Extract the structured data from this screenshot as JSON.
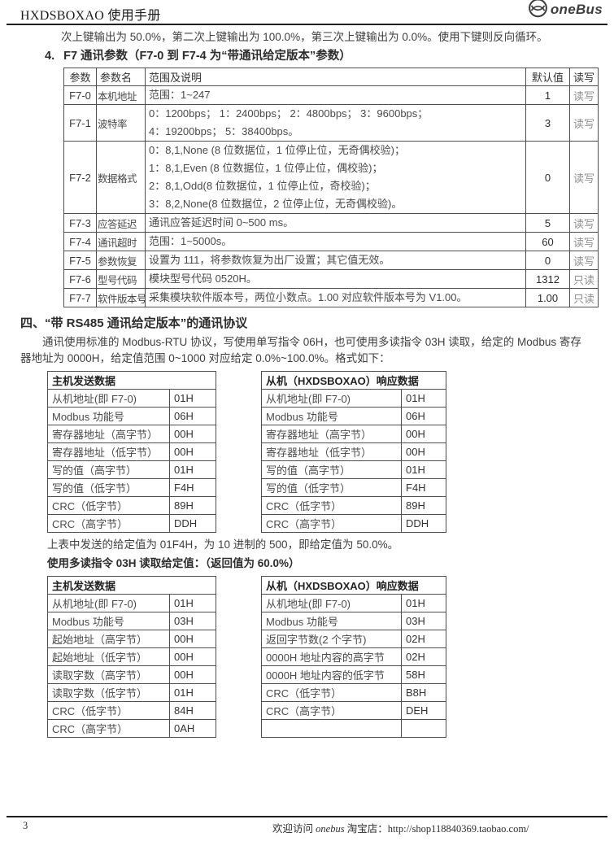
{
  "colors": {
    "rule": "#1f1f1f",
    "border": "#4f4f4f",
    "text": "#3f3f3f",
    "muted": "#8f8f8f",
    "logo": "#3d3d3d"
  },
  "header": {
    "title": "HXDSBOXAO 使用手册",
    "logo_text": "oneBus"
  },
  "intro_line": "次上键输出为 50.0%，第二次上键输出为 100.0%，第三次上键输出为 0.0%。使用下键则反向循环。",
  "section4": {
    "number": "4.",
    "heading": "F7 通讯参数（F7-0 到 F7-4 为“带通讯给定版本”参数）",
    "table": {
      "headers": [
        "参数",
        "参数名",
        "范围及说明",
        "默认值",
        "读写"
      ],
      "rows": [
        {
          "param": "F7-0",
          "name": "本机地址",
          "desc": [
            "范围：1~247"
          ],
          "default": "1",
          "rw": "读写"
        },
        {
          "param": "F7-1",
          "name": "波特率",
          "desc": [
            "0：1200bps； 1：2400bps； 2：4800bps； 3：9600bps；",
            "4：19200bps； 5：38400bps。"
          ],
          "default": "3",
          "rw": "读写"
        },
        {
          "param": "F7-2",
          "name": "数据格式",
          "desc": [
            "0：8,1,None (8 位数据位，1 位停止位，无奇偶校验)；",
            "1：8,1,Even (8 位数据位，1 位停止位，偶校验)；",
            "2：8,1,Odd(8 位数据位，1 位停止位，奇校验)；",
            "3：8,2,None(8 位数据位，2 位停止位，无奇偶校验)。"
          ],
          "default": "0",
          "rw": "读写"
        },
        {
          "param": "F7-3",
          "name": "应答延迟",
          "desc": [
            "通讯应答延迟时间 0~500 ms。"
          ],
          "default": "5",
          "rw": "读写"
        },
        {
          "param": "F7-4",
          "name": "通讯超时",
          "desc": [
            "范围：1~5000s。"
          ],
          "default": "60",
          "rw": "读写"
        },
        {
          "param": "F7-5",
          "name": "参数恢复",
          "desc": [
            "设置为 111，将参数恢复为出厂设置；其它值无效。"
          ],
          "default": "0",
          "rw": "读写"
        },
        {
          "param": "F7-6",
          "name": "型号代码",
          "desc": [
            "模块型号代码 0520H。"
          ],
          "default": "1312",
          "rw": "只读"
        },
        {
          "param": "F7-7",
          "name": "软件版本号",
          "desc": [
            "采集模块软件版本号，两位小数点。1.00 对应软件版本号为 V1.00。"
          ],
          "default": "1.00",
          "rw": "只读"
        }
      ]
    }
  },
  "protocol": {
    "heading": "四、“带 RS485 通讯给定版本”的通讯协议",
    "para_line1": "通讯使用标准的 Modbus-RTU 协议，写使用单写指令 06H，也可使用多读指令 03H 读取，给定的 Modbus 寄存",
    "para_line2": "器地址为 0000H，给定值范围 0~1000 对应给定 0.0%~100.0%。格式如下：",
    "write_pair": {
      "host": {
        "title": "主机发送数据",
        "rows": [
          {
            "label": "从机地址(即 F7-0)",
            "value": "01H"
          },
          {
            "label": "Modbus 功能号",
            "value": "06H"
          },
          {
            "label": "寄存器地址（高字节）",
            "value": "00H"
          },
          {
            "label": "寄存器地址（低字节）",
            "value": "00H"
          },
          {
            "label": "写的值（高字节）",
            "value": "01H"
          },
          {
            "label": "写的值（低字节）",
            "value": "F4H"
          },
          {
            "label": "CRC（低字节）",
            "value": "89H"
          },
          {
            "label": "CRC（高字节）",
            "value": "DDH"
          }
        ]
      },
      "slave": {
        "title": "从机（HXDSBOXAO）响应数据",
        "rows": [
          {
            "label": "从机地址(即 F7-0)",
            "value": "01H"
          },
          {
            "label": "Modbus 功能号",
            "value": "06H"
          },
          {
            "label": "寄存器地址（高字节）",
            "value": "00H"
          },
          {
            "label": "寄存器地址（低字节）",
            "value": "00H"
          },
          {
            "label": "写的值（高字节）",
            "value": "01H"
          },
          {
            "label": "写的值（低字节）",
            "value": "F4H"
          },
          {
            "label": "CRC（低字节）",
            "value": "89H"
          },
          {
            "label": "CRC（高字节）",
            "value": "DDH"
          }
        ]
      }
    },
    "note": "上表中发送的给定值为 01F4H，为 10 进制的 500，即给定值为 50.0%。",
    "read_heading": "使用多读指令 03H 读取给定值：（返回值为 60.0%）",
    "read_pair": {
      "host": {
        "title": "主机发送数据",
        "rows": [
          {
            "label": "从机地址(即 F7-0)",
            "value": "01H"
          },
          {
            "label": "Modbus 功能号",
            "value": "03H"
          },
          {
            "label": "起始地址（高字节）",
            "value": "00H"
          },
          {
            "label": "起始地址（低字节）",
            "value": "00H"
          },
          {
            "label": "读取字数（高字节）",
            "value": "00H"
          },
          {
            "label": "读取字数（低字节）",
            "value": "01H"
          },
          {
            "label": "CRC（低字节）",
            "value": "84H"
          },
          {
            "label": "CRC（高字节）",
            "value": "0AH"
          }
        ]
      },
      "slave": {
        "title": "从机（HXDSBOXAO）响应数据",
        "rows": [
          {
            "label": "从机地址(即 F7-0)",
            "value": "01H"
          },
          {
            "label": "Modbus 功能号",
            "value": "03H"
          },
          {
            "label": "返回字节数(2 个字节)",
            "value": "02H"
          },
          {
            "label": "0000H 地址内容的高字节",
            "value": "02H"
          },
          {
            "label": "0000H 地址内容的低字节",
            "value": "58H"
          },
          {
            "label": "CRC（低字节）",
            "value": "B8H"
          },
          {
            "label": "CRC（高字节）",
            "value": "DEH"
          },
          {
            "label": "",
            "value": ""
          }
        ]
      }
    }
  },
  "footer": {
    "page_number": "3",
    "prefix": "欢迎访问 ",
    "brand": "onebus",
    "middle": " 淘宝店：",
    "url": "http://shop118840369.taobao.com/"
  }
}
